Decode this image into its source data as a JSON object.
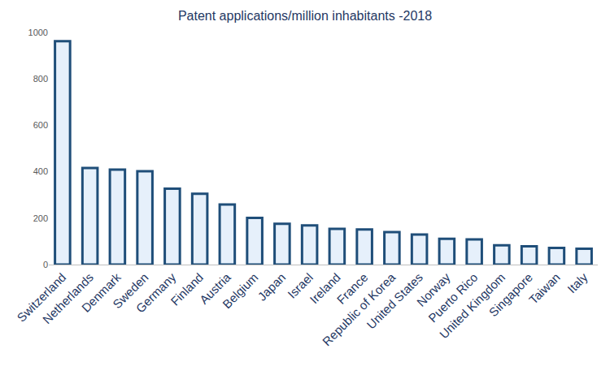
{
  "chart_data": {
    "type": "bar",
    "title": "Patent applications/million inhabitants -2018",
    "categories": [
      "Switzerland",
      "Netherlands",
      "Denmark",
      "Sweden",
      "Germany",
      "Finland",
      "Austria",
      "Belgium",
      "Japan",
      "Israel",
      "Ireland",
      "France",
      "Republic of Korea",
      "United States",
      "Norway",
      "Puerto Rico",
      "United Kingdom",
      "Singapore",
      "Taiwan",
      "Italy"
    ],
    "values": [
      962,
      416,
      409,
      402,
      327,
      305,
      259,
      201,
      176,
      169,
      154,
      151,
      140,
      129,
      111,
      108,
      83,
      79,
      72,
      68
    ],
    "color": "#e6f0fb",
    "ylim": [
      0,
      1000
    ],
    "yticks": [
      0,
      200,
      400,
      600,
      800,
      1000
    ],
    "grid": false
  }
}
